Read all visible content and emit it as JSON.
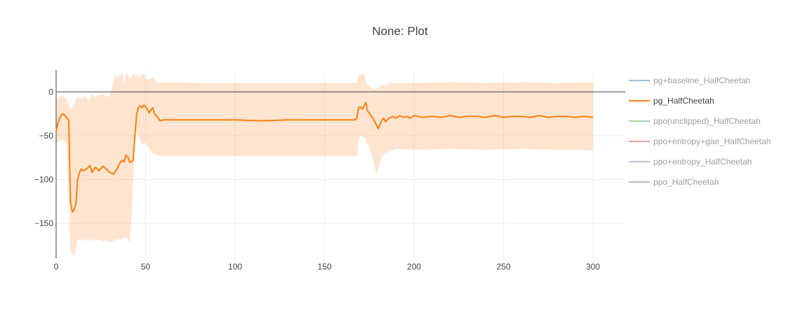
{
  "chart_data": {
    "type": "line",
    "title": "None: Plot",
    "xlabel": "",
    "ylabel": "",
    "xlim": [
      0,
      318
    ],
    "ylim": [
      -190,
      25
    ],
    "xticks": [
      0,
      50,
      100,
      150,
      200,
      250,
      300
    ],
    "yticks": [
      0,
      -50,
      -100,
      -150
    ],
    "grid": true,
    "legend_position": "right",
    "series": [
      {
        "name": "pg+baseline_HalfCheetah",
        "color": "#1f77b4",
        "visible": false,
        "points": []
      },
      {
        "name": "pg_HalfCheetah",
        "color": "#ff7f0e",
        "visible": true,
        "points": [
          [
            0,
            -45
          ],
          [
            1,
            -35
          ],
          [
            2,
            -30
          ],
          [
            3,
            -26
          ],
          [
            4,
            -25
          ],
          [
            5,
            -27
          ],
          [
            6,
            -30
          ],
          [
            7,
            -32
          ],
          [
            8,
            -125
          ],
          [
            9,
            -137
          ],
          [
            10,
            -135
          ],
          [
            11,
            -128
          ],
          [
            12,
            -100
          ],
          [
            13,
            -92
          ],
          [
            14,
            -88
          ],
          [
            15,
            -90
          ],
          [
            17,
            -88
          ],
          [
            19,
            -84
          ],
          [
            20,
            -92
          ],
          [
            22,
            -86
          ],
          [
            24,
            -90
          ],
          [
            26,
            -85
          ],
          [
            28,
            -88
          ],
          [
            30,
            -92
          ],
          [
            32,
            -94
          ],
          [
            34,
            -88
          ],
          [
            36,
            -80
          ],
          [
            37,
            -78
          ],
          [
            38,
            -80
          ],
          [
            39,
            -72
          ],
          [
            40,
            -74
          ],
          [
            41,
            -80
          ],
          [
            42,
            -80
          ],
          [
            43,
            -78
          ],
          [
            44,
            -50
          ],
          [
            45,
            -25
          ],
          [
            46,
            -18
          ],
          [
            47,
            -16
          ],
          [
            48,
            -18
          ],
          [
            49,
            -15
          ],
          [
            50,
            -17
          ],
          [
            51,
            -20
          ],
          [
            52,
            -24
          ],
          [
            53,
            -20
          ],
          [
            54,
            -18
          ],
          [
            55,
            -25
          ],
          [
            56,
            -27
          ],
          [
            57,
            -30
          ],
          [
            58,
            -33
          ],
          [
            60,
            -32
          ],
          [
            70,
            -32
          ],
          [
            80,
            -32
          ],
          [
            100,
            -32
          ],
          [
            115,
            -33
          ],
          [
            130,
            -32
          ],
          [
            150,
            -32
          ],
          [
            160,
            -32
          ],
          [
            167,
            -32
          ],
          [
            168,
            -30
          ],
          [
            169,
            -18
          ],
          [
            170,
            -17
          ],
          [
            171,
            -20
          ],
          [
            172,
            -16
          ],
          [
            173,
            -12
          ],
          [
            174,
            -22
          ],
          [
            175,
            -24
          ],
          [
            176,
            -28
          ],
          [
            177,
            -30
          ],
          [
            178,
            -34
          ],
          [
            179,
            -38
          ],
          [
            180,
            -42
          ],
          [
            181,
            -37
          ],
          [
            182,
            -32
          ],
          [
            183,
            -30
          ],
          [
            184,
            -34
          ],
          [
            186,
            -30
          ],
          [
            188,
            -28
          ],
          [
            190,
            -30
          ],
          [
            192,
            -27
          ],
          [
            194,
            -29
          ],
          [
            196,
            -28
          ],
          [
            198,
            -30
          ],
          [
            200,
            -27
          ],
          [
            205,
            -29
          ],
          [
            210,
            -28
          ],
          [
            215,
            -29
          ],
          [
            220,
            -27
          ],
          [
            225,
            -29
          ],
          [
            230,
            -28
          ],
          [
            235,
            -28
          ],
          [
            240,
            -29
          ],
          [
            245,
            -27
          ],
          [
            250,
            -29
          ],
          [
            255,
            -28
          ],
          [
            260,
            -28
          ],
          [
            265,
            -29
          ],
          [
            270,
            -27
          ],
          [
            275,
            -29
          ],
          [
            280,
            -28
          ],
          [
            285,
            -28
          ],
          [
            290,
            -29
          ],
          [
            295,
            -28
          ],
          [
            300,
            -29
          ]
        ],
        "band_upper": [
          [
            0,
            -10
          ],
          [
            2,
            -5
          ],
          [
            4,
            -5
          ],
          [
            6,
            -8
          ],
          [
            8,
            -20
          ],
          [
            10,
            -15
          ],
          [
            12,
            -5
          ],
          [
            14,
            -8
          ],
          [
            16,
            -5
          ],
          [
            18,
            -10
          ],
          [
            20,
            -3
          ],
          [
            22,
            -6
          ],
          [
            24,
            -4
          ],
          [
            26,
            -2
          ],
          [
            28,
            -6
          ],
          [
            30,
            -4
          ],
          [
            32,
            10
          ],
          [
            33,
            22
          ],
          [
            34,
            15
          ],
          [
            35,
            20
          ],
          [
            36,
            18
          ],
          [
            37,
            24
          ],
          [
            38,
            8
          ],
          [
            39,
            20
          ],
          [
            40,
            22
          ],
          [
            41,
            14
          ],
          [
            42,
            16
          ],
          [
            43,
            22
          ],
          [
            44,
            18
          ],
          [
            45,
            20
          ],
          [
            46,
            16
          ],
          [
            47,
            19
          ],
          [
            48,
            18
          ],
          [
            49,
            21
          ],
          [
            50,
            15
          ],
          [
            52,
            14
          ],
          [
            54,
            17
          ],
          [
            56,
            12
          ],
          [
            58,
            10
          ],
          [
            60,
            11
          ],
          [
            80,
            10
          ],
          [
            100,
            10
          ],
          [
            120,
            10
          ],
          [
            140,
            10
          ],
          [
            160,
            10
          ],
          [
            168,
            10
          ],
          [
            169,
            20
          ],
          [
            170,
            18
          ],
          [
            171,
            22
          ],
          [
            172,
            20
          ],
          [
            173,
            12
          ],
          [
            174,
            8
          ],
          [
            176,
            5
          ],
          [
            178,
            3
          ],
          [
            180,
            5
          ],
          [
            182,
            8
          ],
          [
            184,
            7
          ],
          [
            186,
            10
          ],
          [
            190,
            10
          ],
          [
            200,
            10
          ],
          [
            220,
            11
          ],
          [
            240,
            10
          ],
          [
            260,
            11
          ],
          [
            280,
            10
          ],
          [
            300,
            11
          ]
        ],
        "band_lower": [
          [
            0,
            -60
          ],
          [
            2,
            -55
          ],
          [
            4,
            -55
          ],
          [
            6,
            -60
          ],
          [
            8,
            -180
          ],
          [
            9,
            -185
          ],
          [
            10,
            -188
          ],
          [
            11,
            -180
          ],
          [
            12,
            -168
          ],
          [
            14,
            -170
          ],
          [
            16,
            -168
          ],
          [
            18,
            -170
          ],
          [
            20,
            -168
          ],
          [
            22,
            -170
          ],
          [
            24,
            -168
          ],
          [
            26,
            -171
          ],
          [
            28,
            -169
          ],
          [
            30,
            -172
          ],
          [
            32,
            -170
          ],
          [
            34,
            -168
          ],
          [
            36,
            -169
          ],
          [
            38,
            -166
          ],
          [
            40,
            -168
          ],
          [
            41,
            -172
          ],
          [
            42,
            -150
          ],
          [
            43,
            -100
          ],
          [
            44,
            -60
          ],
          [
            45,
            -45
          ],
          [
            46,
            -50
          ],
          [
            47,
            -55
          ],
          [
            48,
            -60
          ],
          [
            50,
            -58
          ],
          [
            52,
            -65
          ],
          [
            54,
            -70
          ],
          [
            56,
            -72
          ],
          [
            58,
            -73
          ],
          [
            60,
            -73
          ],
          [
            80,
            -73
          ],
          [
            100,
            -73
          ],
          [
            120,
            -73
          ],
          [
            140,
            -73
          ],
          [
            160,
            -73
          ],
          [
            168,
            -73
          ],
          [
            169,
            -55
          ],
          [
            170,
            -50
          ],
          [
            172,
            -52
          ],
          [
            174,
            -60
          ],
          [
            176,
            -70
          ],
          [
            178,
            -85
          ],
          [
            179,
            -95
          ],
          [
            180,
            -88
          ],
          [
            181,
            -80
          ],
          [
            182,
            -72
          ],
          [
            184,
            -70
          ],
          [
            186,
            -68
          ],
          [
            190,
            -65
          ],
          [
            200,
            -66
          ],
          [
            220,
            -65
          ],
          [
            240,
            -66
          ],
          [
            260,
            -65
          ],
          [
            280,
            -66
          ],
          [
            300,
            -67
          ]
        ]
      },
      {
        "name": "ppo(unclipped)_HalfCheetah",
        "color": "#2ca02c",
        "visible": false,
        "points": []
      },
      {
        "name": "ppo+entropy+gae_HalfCheetah",
        "color": "#d62728",
        "visible": false,
        "points": []
      },
      {
        "name": "ppo+entropy_HalfCheetah",
        "color": "#9467bd",
        "visible": false,
        "points": []
      },
      {
        "name": "ppo_HalfCheetah",
        "color": "#8c564b",
        "visible": false,
        "points": []
      }
    ],
    "band_color": "#ff7f0e",
    "band_opacity": 0.2,
    "legend_inactive_text_color": "#a0a0a0",
    "legend_active_text_color": "#444444"
  }
}
